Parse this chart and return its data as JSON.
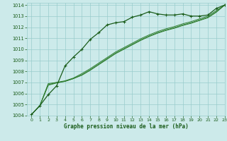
{
  "title": "Graphe pression niveau de la mer (hPa)",
  "xlim": [
    -0.5,
    23
  ],
  "ylim": [
    1004,
    1014.2
  ],
  "yticks": [
    1004,
    1005,
    1006,
    1007,
    1008,
    1009,
    1010,
    1011,
    1012,
    1013,
    1014
  ],
  "xticks": [
    0,
    1,
    2,
    3,
    4,
    5,
    6,
    7,
    8,
    9,
    10,
    11,
    12,
    13,
    14,
    15,
    16,
    17,
    18,
    19,
    20,
    21,
    22,
    23
  ],
  "bg_color": "#cceaea",
  "grid_color": "#99cccc",
  "line_color_dark": "#1a5c1a",
  "line_color_mid": "#2e7d2e",
  "series1_x": [
    0,
    1,
    2,
    3,
    4,
    5,
    6,
    7,
    8,
    9,
    10,
    11,
    12,
    13,
    14,
    15,
    16,
    17,
    18,
    19,
    20,
    21,
    22,
    23
  ],
  "series1_y": [
    1004.1,
    1004.9,
    1005.9,
    1006.7,
    1008.5,
    1009.3,
    1010.0,
    1010.9,
    1011.5,
    1012.2,
    1012.4,
    1012.5,
    1012.9,
    1013.1,
    1013.4,
    1013.2,
    1013.1,
    1013.1,
    1013.2,
    1013.0,
    1013.0,
    1013.1,
    1013.7,
    1014.0
  ],
  "series2_x": [
    0,
    1,
    2,
    3,
    4,
    5,
    6,
    7,
    8,
    9,
    10,
    11,
    12,
    13,
    14,
    15,
    16,
    17,
    18,
    19,
    20,
    21,
    22,
    23
  ],
  "series2_y": [
    1004.1,
    1004.9,
    1006.9,
    1007.0,
    1007.15,
    1007.4,
    1007.8,
    1008.25,
    1008.75,
    1009.25,
    1009.75,
    1010.15,
    1010.55,
    1010.95,
    1011.3,
    1011.6,
    1011.85,
    1012.05,
    1012.3,
    1012.5,
    1012.75,
    1013.0,
    1013.5,
    1014.0
  ],
  "series3_x": [
    0,
    1,
    2,
    3,
    4,
    5,
    6,
    7,
    8,
    9,
    10,
    11,
    12,
    13,
    14,
    15,
    16,
    17,
    18,
    19,
    20,
    21,
    22,
    23
  ],
  "series3_y": [
    1004.1,
    1004.9,
    1006.75,
    1006.95,
    1007.1,
    1007.35,
    1007.7,
    1008.15,
    1008.65,
    1009.15,
    1009.65,
    1010.05,
    1010.45,
    1010.85,
    1011.2,
    1011.5,
    1011.75,
    1011.95,
    1012.2,
    1012.4,
    1012.65,
    1012.9,
    1013.4,
    1014.0
  ],
  "series4_x": [
    0,
    1,
    2,
    3,
    4,
    5,
    6,
    7,
    8,
    9,
    10,
    11,
    12,
    13,
    14,
    15,
    16,
    17,
    18,
    19,
    20,
    21,
    22,
    23
  ],
  "series4_y": [
    1004.1,
    1004.9,
    1006.8,
    1007.0,
    1007.1,
    1007.35,
    1007.65,
    1008.1,
    1008.6,
    1009.1,
    1009.6,
    1010.0,
    1010.4,
    1010.8,
    1011.15,
    1011.45,
    1011.7,
    1011.9,
    1012.15,
    1012.35,
    1012.6,
    1012.85,
    1013.35,
    1014.0
  ]
}
